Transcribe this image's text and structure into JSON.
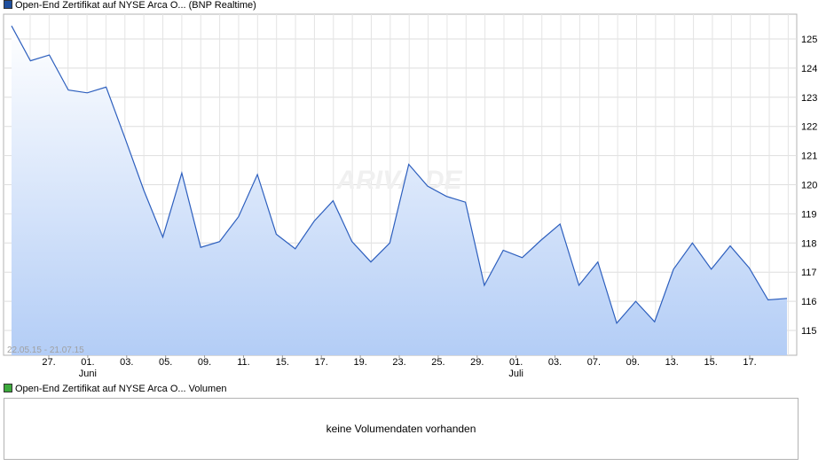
{
  "legends": {
    "price": {
      "label": "Open-End Zertifikat auf NYSE Arca O... (BNP Realtime)",
      "color": "#1f4f9e"
    },
    "volume": {
      "label": "Open-End Zertifikat auf NYSE Arca O... Volumen",
      "color": "#3caa3c"
    }
  },
  "range_label": "22.05.15 - 21.07.15",
  "watermark": "ARIVA.DE",
  "volume_panel": {
    "message": "keine Volumendaten vorhanden"
  },
  "chart_data": {
    "type": "area",
    "series": [
      {
        "name": "Open-End Zertifikat auf NYSE Arca O... (BNP Realtime)",
        "color": "#2d5fbe",
        "values": [
          125.45,
          124.25,
          124.45,
          123.25,
          123.15,
          123.35,
          121.6,
          119.8,
          118.2,
          120.4,
          117.85,
          118.05,
          118.9,
          120.35,
          118.3,
          117.8,
          118.75,
          119.45,
          118.05,
          117.35,
          118.0,
          120.7,
          119.95,
          119.6,
          119.4,
          116.55,
          117.75,
          117.5,
          118.1,
          118.65,
          116.55,
          117.35,
          115.25,
          116.0,
          115.3,
          117.1,
          118.0,
          117.1,
          117.9,
          117.15,
          116.05,
          116.1
        ]
      }
    ],
    "xlim": [
      "2015-05-22",
      "2015-07-21"
    ],
    "ylim": [
      114.15,
      125.85
    ],
    "y_ticks": [
      115,
      116,
      117,
      118,
      119,
      120,
      121,
      122,
      123,
      124,
      125
    ],
    "x_ticks": [
      {
        "label": "27.",
        "sublabel": ""
      },
      {
        "label": "01.",
        "sublabel": "Juni"
      },
      {
        "label": "03.",
        "sublabel": ""
      },
      {
        "label": "05.",
        "sublabel": ""
      },
      {
        "label": "09.",
        "sublabel": ""
      },
      {
        "label": "11.",
        "sublabel": ""
      },
      {
        "label": "15.",
        "sublabel": ""
      },
      {
        "label": "17.",
        "sublabel": ""
      },
      {
        "label": "19.",
        "sublabel": ""
      },
      {
        "label": "23.",
        "sublabel": ""
      },
      {
        "label": "25.",
        "sublabel": ""
      },
      {
        "label": "29.",
        "sublabel": ""
      },
      {
        "label": "01.",
        "sublabel": "Juli"
      },
      {
        "label": "03.",
        "sublabel": ""
      },
      {
        "label": "07.",
        "sublabel": ""
      },
      {
        "label": "09.",
        "sublabel": ""
      },
      {
        "label": "13.",
        "sublabel": ""
      },
      {
        "label": "15.",
        "sublabel": ""
      },
      {
        "label": "17.",
        "sublabel": ""
      }
    ],
    "grid": true,
    "y_axis_side": "right",
    "fill_gradient": [
      "#ffffff",
      "#b3cdf6"
    ]
  }
}
